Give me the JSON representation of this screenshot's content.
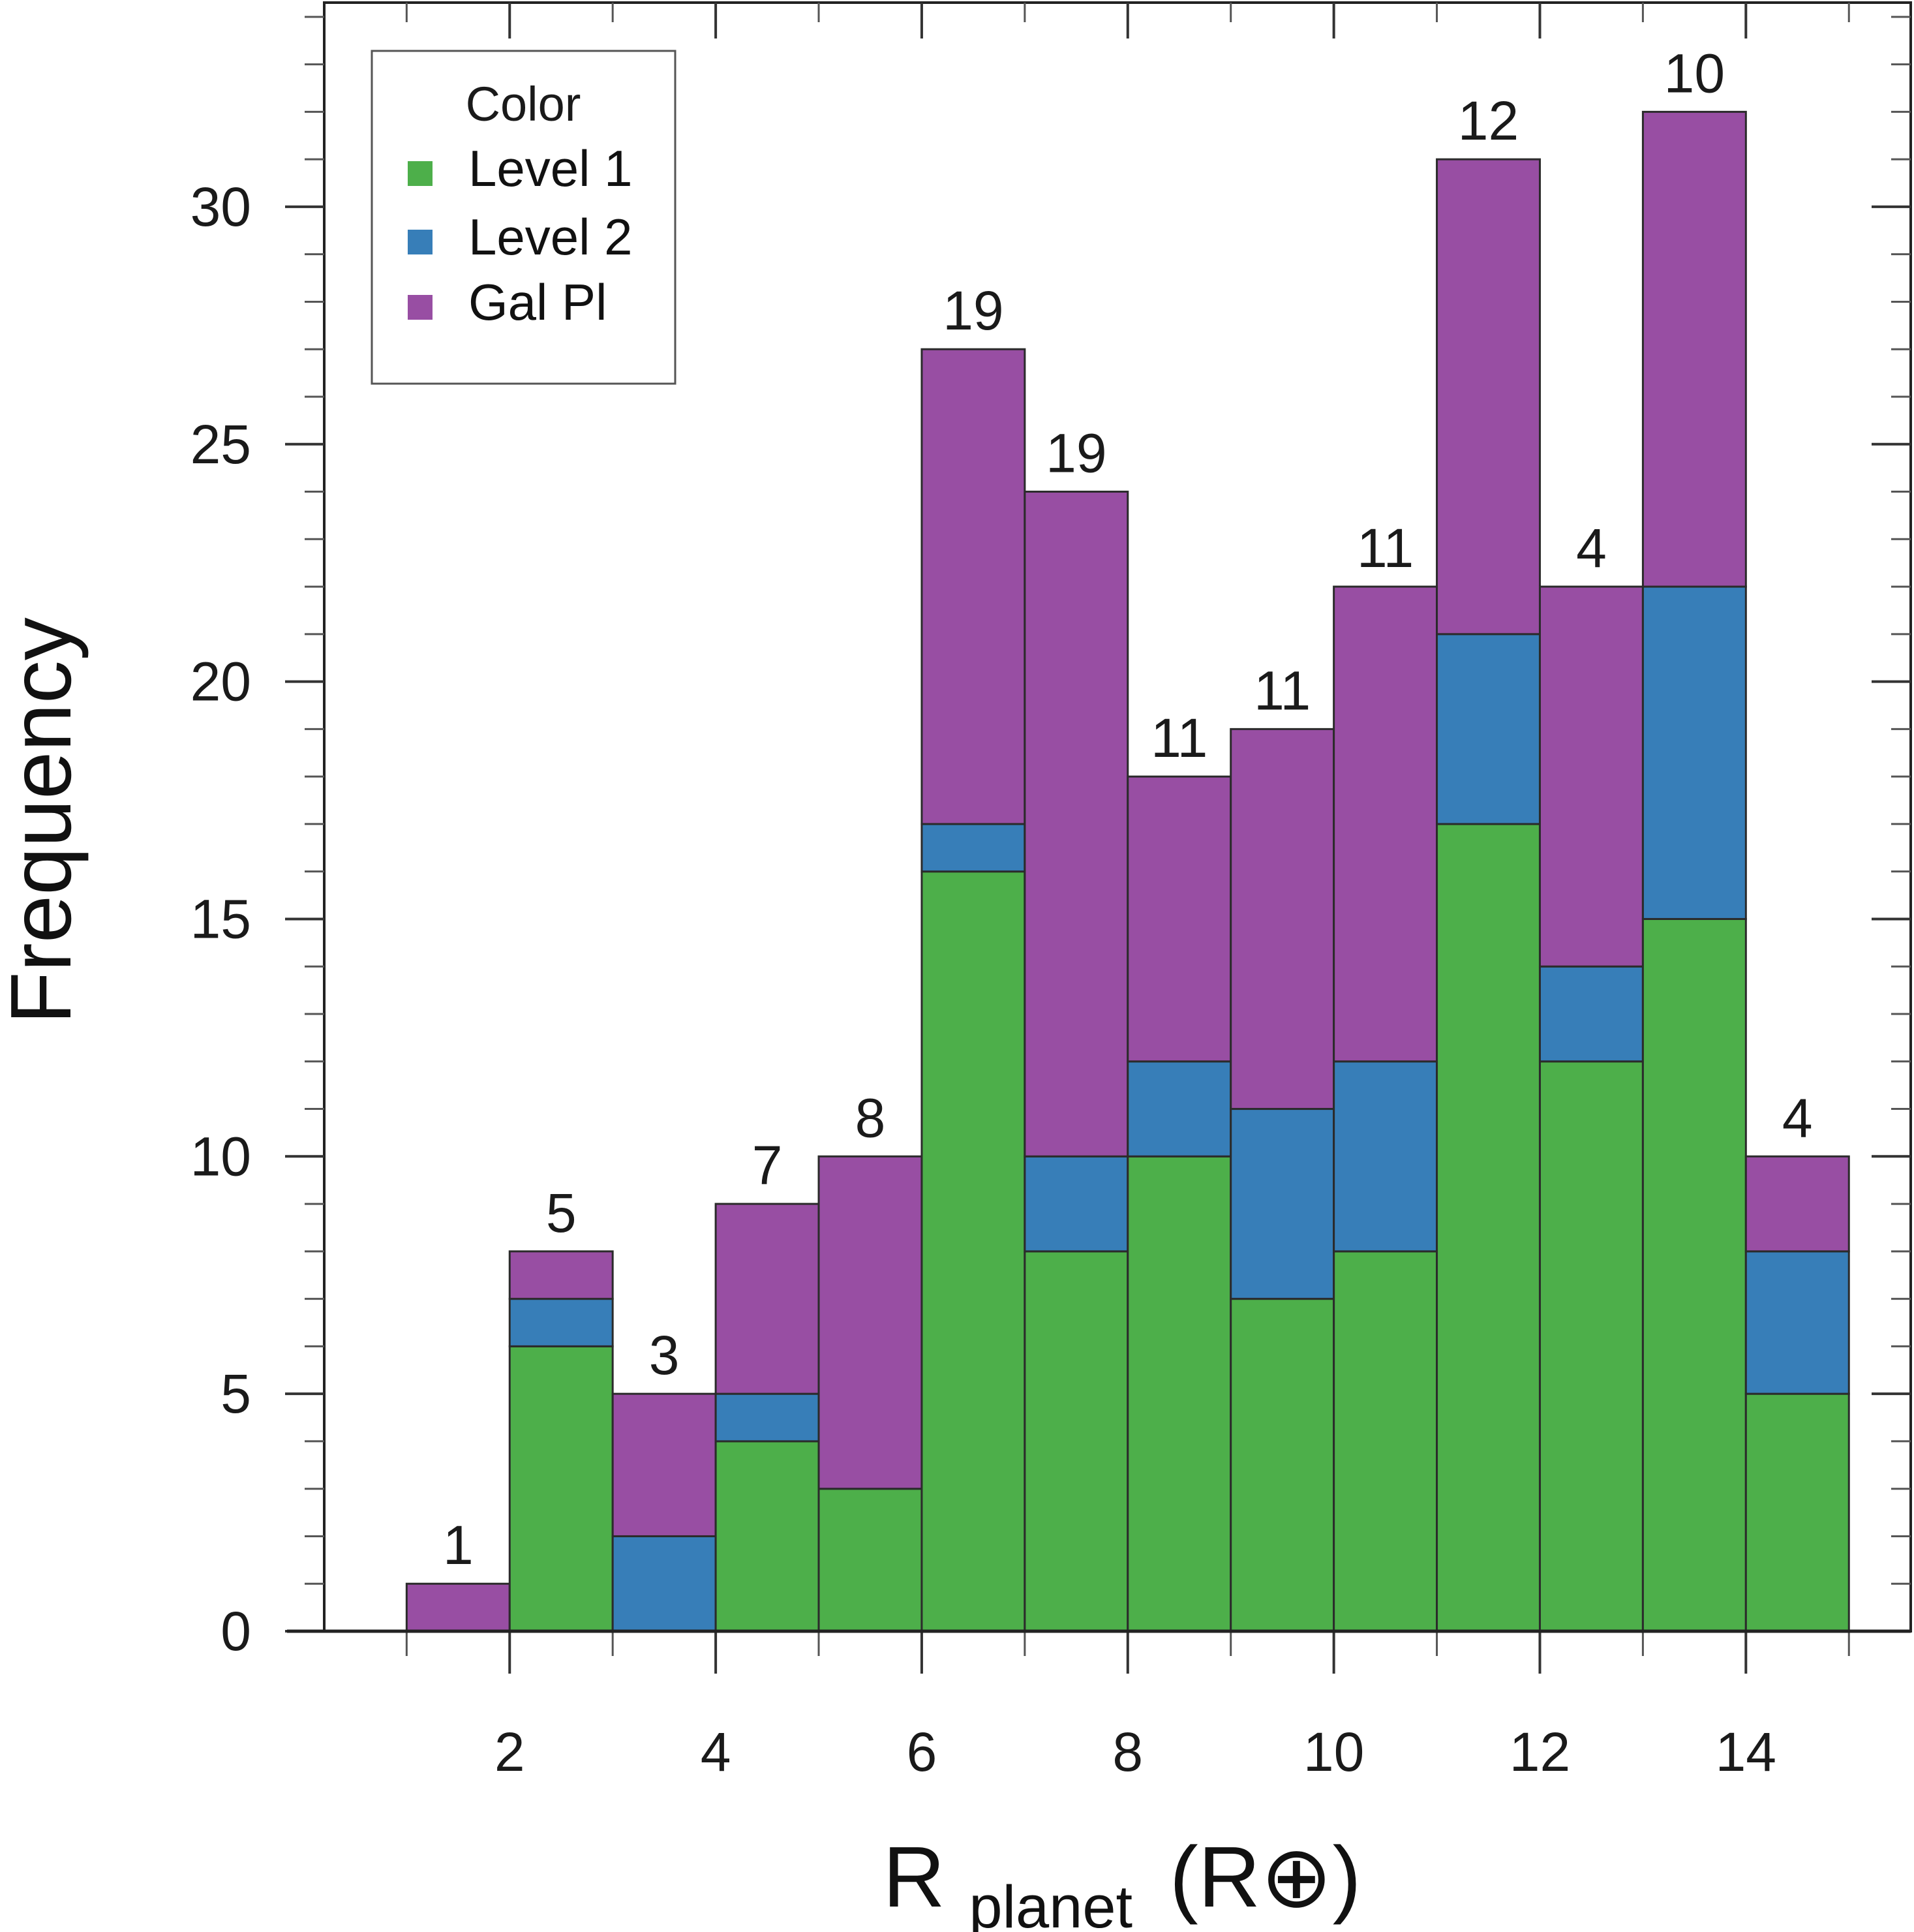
{
  "chart_data": {
    "type": "bar",
    "stacked": true,
    "title": "",
    "xlabel": "R",
    "xlabel_sub": "planet",
    "xlabel_unit": "(R⊕)",
    "ylabel": "Frequency",
    "xlim": [
      0.2,
      15.6
    ],
    "ylim": [
      0,
      34.3
    ],
    "bin_edges": [
      1,
      2,
      3,
      4,
      5,
      6,
      7,
      8,
      9,
      10,
      11,
      12,
      13,
      14,
      15
    ],
    "x_ticks": [
      2,
      4,
      6,
      8,
      10,
      12,
      14
    ],
    "x_tick_labels": [
      "2",
      "4",
      "6",
      "8",
      "10",
      "12",
      "14"
    ],
    "y_ticks": [
      0,
      5,
      10,
      15,
      20,
      25,
      30
    ],
    "y_tick_labels": [
      "0",
      "5",
      "10",
      "15",
      "20",
      "25",
      "30"
    ],
    "series": [
      {
        "name": "Level 1",
        "color": "#4daf4a",
        "values": [
          0,
          6,
          0,
          4,
          3,
          16,
          8,
          10,
          7,
          8,
          17,
          12,
          15,
          5
        ]
      },
      {
        "name": "Level 2",
        "color": "#377eb8",
        "values": [
          0,
          1,
          2,
          1,
          0,
          1,
          2,
          2,
          4,
          4,
          4,
          2,
          7,
          3
        ]
      },
      {
        "name": "Gal Pl",
        "color": "#984ea3",
        "values": [
          1,
          1,
          3,
          4,
          7,
          10,
          14,
          6,
          8,
          10,
          10,
          8,
          10,
          2
        ]
      }
    ],
    "bar_labels": [
      "1",
      "5",
      "3",
      "7",
      "8",
      "19",
      "19",
      "11",
      "11",
      "11",
      "12",
      "4",
      "10",
      "4"
    ],
    "legend": {
      "title": "Color",
      "position": "top-left"
    }
  }
}
